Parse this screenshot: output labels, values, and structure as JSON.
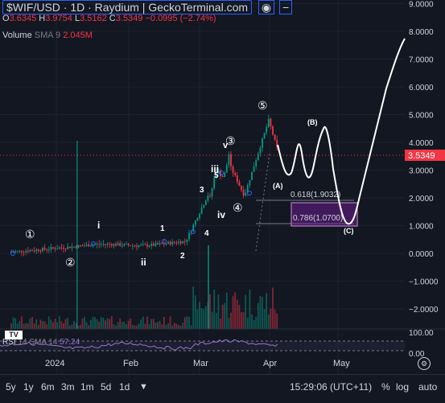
{
  "header": {
    "title": "$WIF/USD · 1D · Raydium | GeckoTerminal.com",
    "ohlc": {
      "o_label": "O",
      "o": "3.6345",
      "h_label": "H",
      "h": "3.9754",
      "l_label": "L",
      "l": "3.5162",
      "c_label": "C",
      "c": "3.5349",
      "change": "−0.0995 (−2.74%)"
    },
    "volume_label": "Volume",
    "volume_ma": "SMA 9",
    "volume_value": "2.045M",
    "rsi_label": "RSI",
    "rsi_ma": "14 SMA 14",
    "rsi_value": "57.24"
  },
  "price_axis": {
    "ticks": [
      "9.0000",
      "8.0000",
      "7.0000",
      "6.0000",
      "5.0000",
      "4.0000",
      "3.0000",
      "2.0000",
      "1.0000",
      "0.0000",
      "−1.0000",
      "−2.0000"
    ],
    "current_price": "3.5349",
    "rsi_ticks": [
      "100.00",
      "0.00"
    ]
  },
  "time_axis": {
    "labels": [
      "2024",
      "Feb",
      "Mar",
      "Apr",
      "May"
    ]
  },
  "fib": {
    "level1": "0.618(1.9032)",
    "level2": "0.786(1.0700)"
  },
  "waves": {
    "w1a": "①",
    "w2a": "②",
    "w3a": "③",
    "w4a": "④",
    "w5a": "⑤",
    "i": "i",
    "ii": "ii",
    "iii": "iii",
    "iv": "iv",
    "v": "v",
    "n1": "1",
    "n2": "2",
    "n3": "3",
    "n4": "4",
    "n5": "5",
    "A": "(A)",
    "B": "(B)",
    "C": "(C)"
  },
  "bottom_bar": {
    "ranges": [
      "5y",
      "1y",
      "6m",
      "3m",
      "1m",
      "5d",
      "1d"
    ],
    "time": "15:29:06 (UTC+11)",
    "percent": "%",
    "log": "log",
    "auto": "auto"
  },
  "colors": {
    "background": "#131722",
    "up": "#089981",
    "down": "#f23645",
    "rsi": "#9575cd",
    "fib_box": "#7b1fa2",
    "accent": "#2962ff"
  },
  "icons": [
    "eye-icon",
    "minus-icon",
    "tradingview-logo-icon",
    "chart-settings-icon",
    "range-calendar-icon"
  ]
}
